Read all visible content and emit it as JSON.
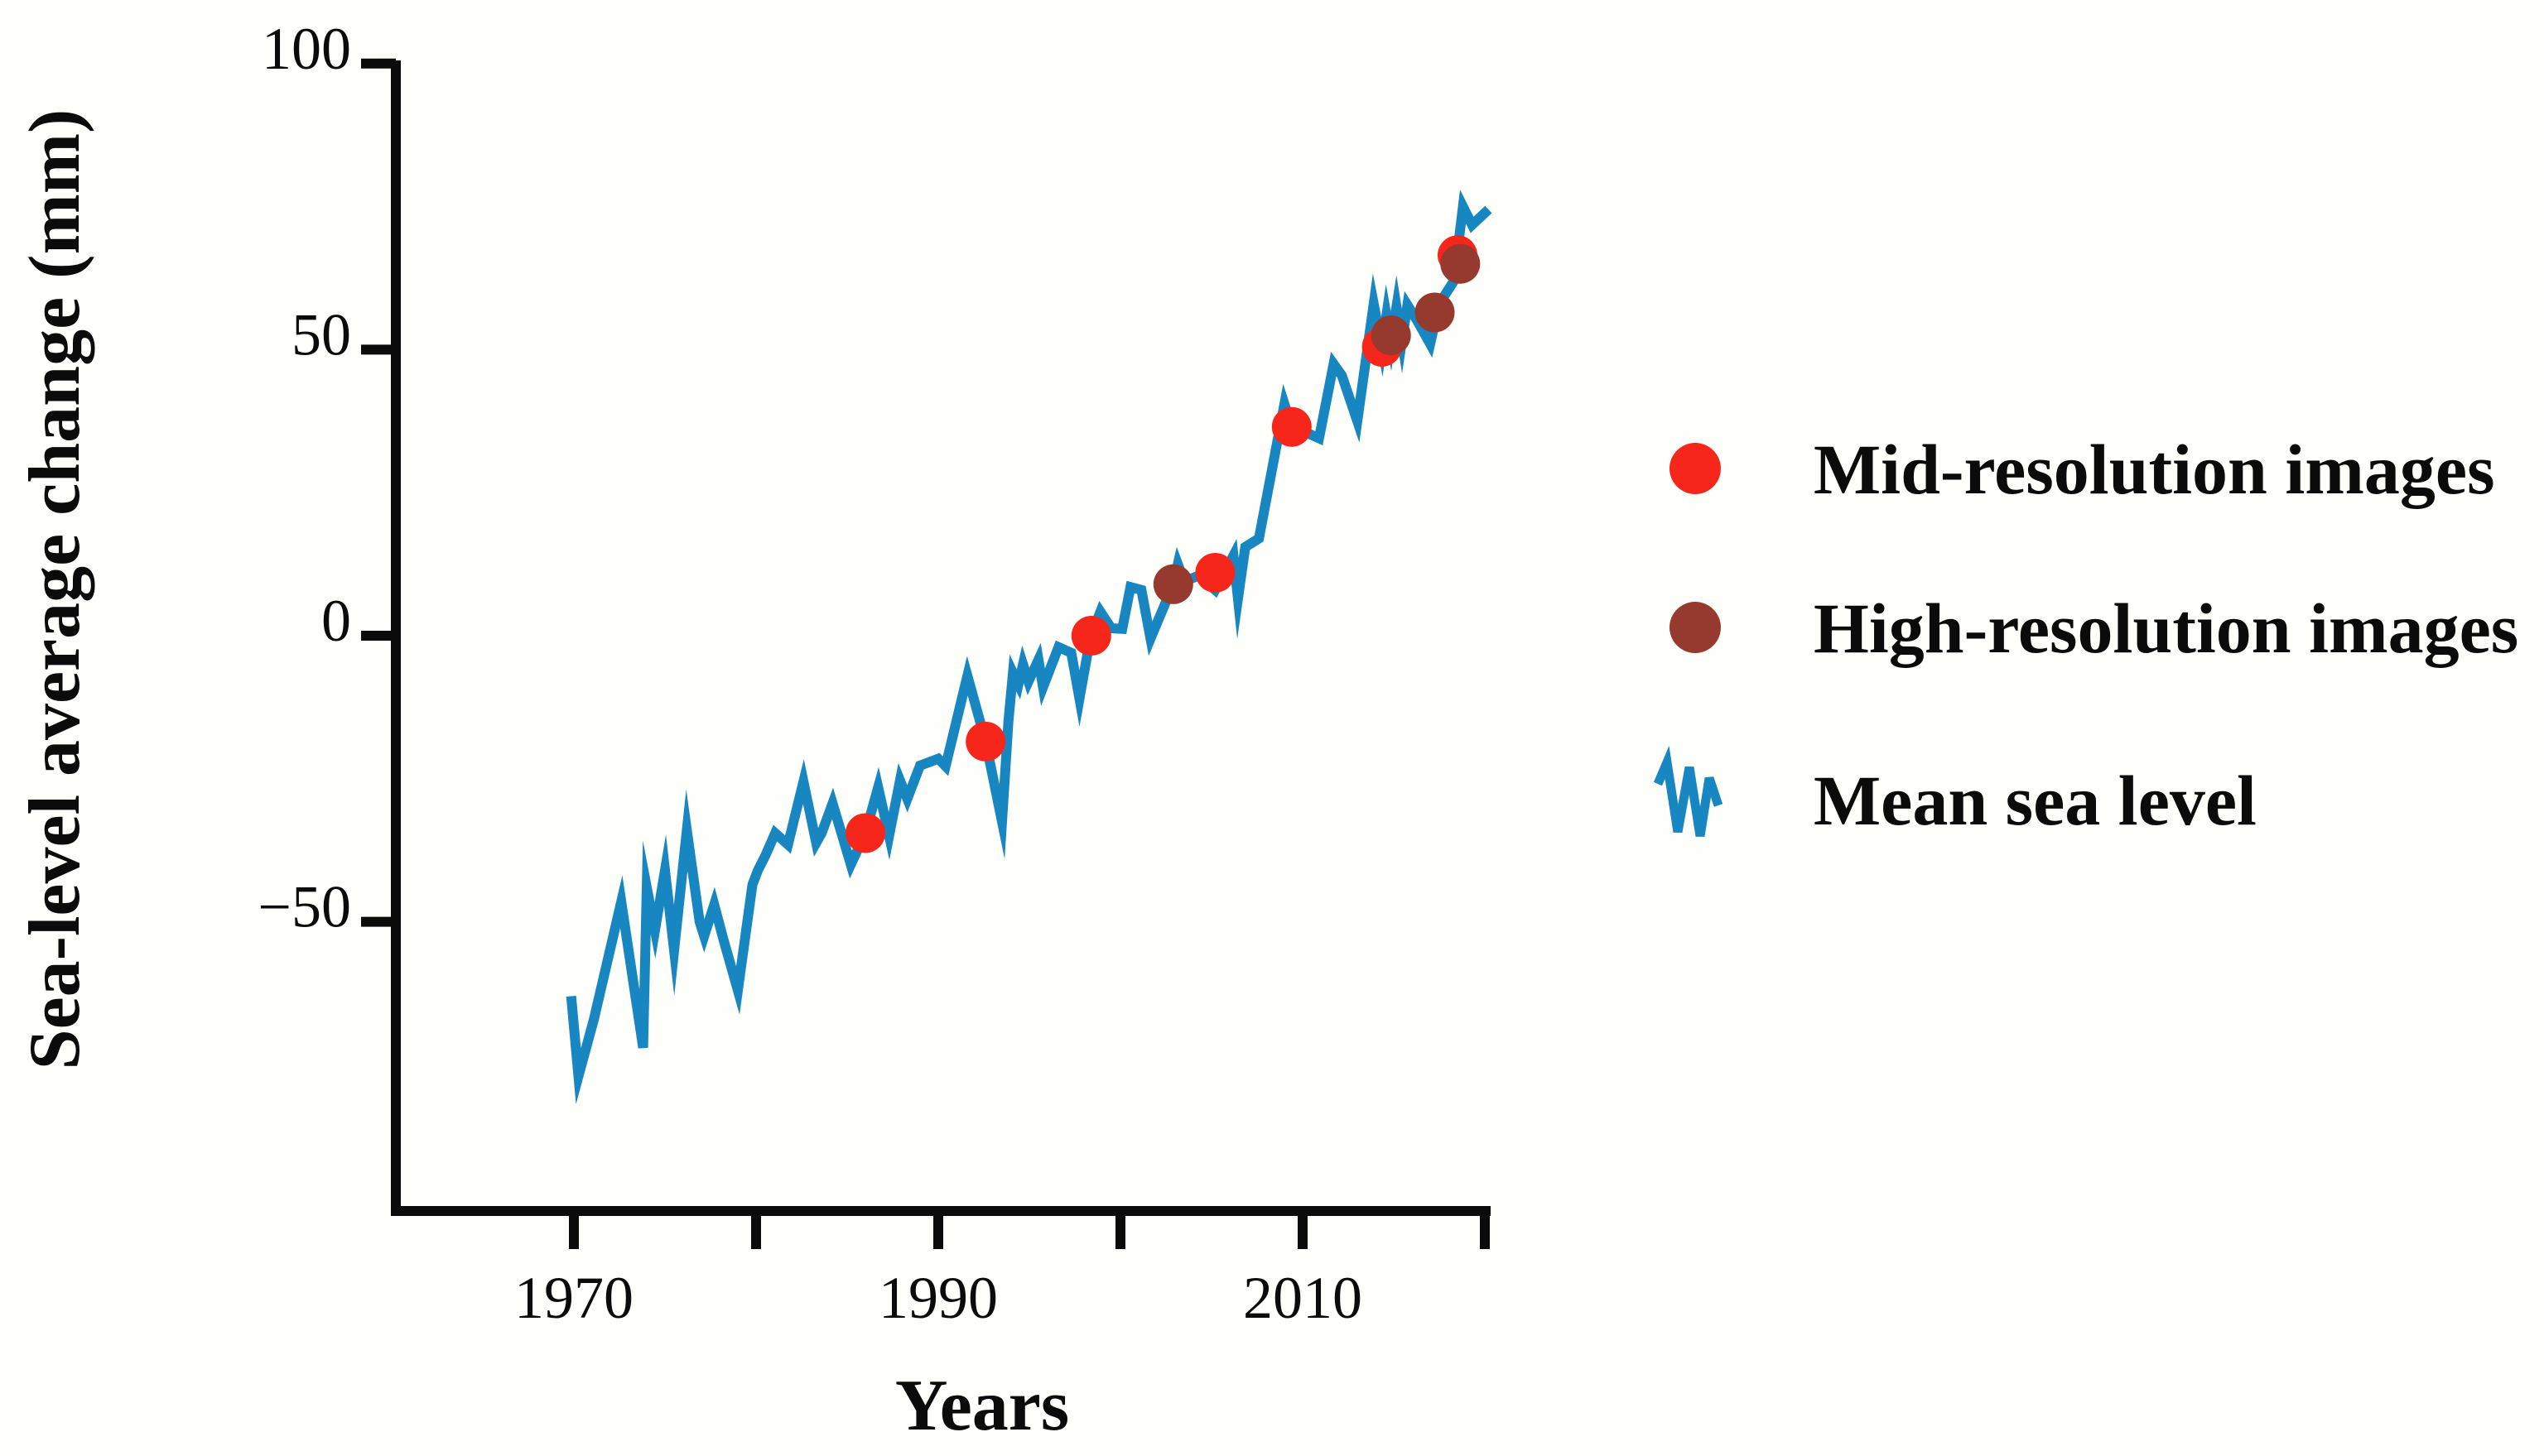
{
  "page": {
    "background": "#FEFEFB"
  },
  "chart_data": {
    "type": "line",
    "title": "",
    "xlabel": "Years",
    "ylabel": "Sea-level average change (mm)",
    "axis_color": "#0b0b0b",
    "grid": false,
    "legend_position": "right-outside",
    "xaxis": {
      "range": [
        1960.2,
        2020.3
      ],
      "ticks": [
        1970,
        1980,
        1990,
        2000,
        2010,
        2020
      ],
      "labeled": [
        {
          "value": 1970,
          "label": "1970"
        },
        {
          "value": 1990,
          "label": "1990"
        },
        {
          "value": 2010,
          "label": "2010"
        }
      ]
    },
    "yaxis": {
      "range": [
        -100.5,
        100
      ],
      "ticks": [
        {
          "value": 100,
          "label": "100"
        },
        {
          "value": 50,
          "label": "50"
        },
        {
          "value": 0,
          "label": "0"
        },
        {
          "value": -50,
          "label": "−50"
        }
      ]
    },
    "series": [
      {
        "name": "Mean sea level",
        "type": "line",
        "color": "#1887C1",
        "points": [
          [
            1969.85,
            -63
          ],
          [
            1970.25,
            -77
          ],
          [
            1971.1,
            -67
          ],
          [
            1972.6,
            -46.5
          ],
          [
            1973.8,
            -72
          ],
          [
            1974.0,
            -44
          ],
          [
            1974.45,
            -51.5
          ],
          [
            1975.0,
            -41
          ],
          [
            1975.5,
            -55
          ],
          [
            1976.2,
            -34
          ],
          [
            1976.9,
            -50
          ],
          [
            1977.15,
            -52.5
          ],
          [
            1977.7,
            -47
          ],
          [
            1978.2,
            -53
          ],
          [
            1979.0,
            -62
          ],
          [
            1979.8,
            -43.5
          ],
          [
            1980.1,
            -41
          ],
          [
            1980.5,
            -38.5
          ],
          [
            1981.05,
            -34.5
          ],
          [
            1981.75,
            -36.5
          ],
          [
            1982.6,
            -25.5
          ],
          [
            1983.3,
            -36.2
          ],
          [
            1983.6,
            -34.5
          ],
          [
            1984.2,
            -29.3
          ],
          [
            1985.2,
            -40
          ],
          [
            1986.0,
            -34.5
          ],
          [
            1986.7,
            -26.5
          ],
          [
            1987.3,
            -35
          ],
          [
            1987.9,
            -25.3
          ],
          [
            1988.3,
            -28.5
          ],
          [
            1989.0,
            -22.7
          ],
          [
            1990.0,
            -21.5
          ],
          [
            1990.4,
            -22.8
          ],
          [
            1991.6,
            -7
          ],
          [
            1992.6,
            -18.5
          ],
          [
            1993.5,
            -32.5
          ],
          [
            1993.85,
            -15
          ],
          [
            1994.1,
            -6.5
          ],
          [
            1994.4,
            -8.5
          ],
          [
            1994.65,
            -5
          ],
          [
            1994.95,
            -8
          ],
          [
            1995.5,
            -4.2
          ],
          [
            1995.75,
            -9
          ],
          [
            1996.6,
            -2
          ],
          [
            1997.3,
            -3
          ],
          [
            1997.75,
            -11
          ],
          [
            1998.35,
            -0.3
          ],
          [
            1998.9,
            4.2
          ],
          [
            1999.5,
            1.3
          ],
          [
            2000.1,
            1.2
          ],
          [
            2000.55,
            8.5
          ],
          [
            2001.15,
            8
          ],
          [
            2001.65,
            -0.5
          ],
          [
            2002.9,
            9
          ],
          [
            2003.15,
            12.5
          ],
          [
            2003.5,
            9.5
          ],
          [
            2004.3,
            10.5
          ],
          [
            2005.2,
            8
          ],
          [
            2006.2,
            14
          ],
          [
            2006.45,
            6.5
          ],
          [
            2006.85,
            15.5
          ],
          [
            2007.6,
            17
          ],
          [
            2009.0,
            40.5
          ],
          [
            2009.4,
            36.5
          ],
          [
            2010.2,
            35.5
          ],
          [
            2010.9,
            34.5
          ],
          [
            2011.7,
            47.5
          ],
          [
            2012.15,
            45.5
          ],
          [
            2013.0,
            37.5
          ],
          [
            2013.9,
            58
          ],
          [
            2014.35,
            50.5
          ],
          [
            2014.6,
            56
          ],
          [
            2014.85,
            51.5
          ],
          [
            2015.15,
            57.5
          ],
          [
            2015.45,
            51.5
          ],
          [
            2015.75,
            57.8
          ],
          [
            2016.3,
            55
          ],
          [
            2017.0,
            51
          ],
          [
            2017.5,
            58
          ],
          [
            2018.3,
            62
          ],
          [
            2018.8,
            75
          ],
          [
            2019.3,
            71.8
          ],
          [
            2020.2,
            74.5
          ]
        ]
      },
      {
        "name": "Mid-resolution images",
        "type": "scatter",
        "color": "#F7261B",
        "points": [
          [
            1986.0,
            -34.5
          ],
          [
            1992.6,
            -18.5
          ],
          [
            1998.4,
            0
          ],
          [
            2005.2,
            11
          ],
          [
            2009.4,
            36.5
          ],
          [
            2014.35,
            50.5
          ],
          [
            2018.5,
            66.5
          ]
        ]
      },
      {
        "name": "High-resolution images",
        "type": "scatter",
        "color": "#963A2F",
        "points": [
          [
            2002.9,
            9
          ],
          [
            2014.85,
            52.5
          ],
          [
            2017.25,
            56.5
          ],
          [
            2018.65,
            65
          ]
        ]
      }
    ],
    "legend": [
      {
        "label": "Mid-resolution images",
        "marker": "dot",
        "color": "#F7261B"
      },
      {
        "label": "High-resolution images",
        "marker": "dot",
        "color": "#963A2F"
      },
      {
        "label": "Mean sea level",
        "marker": "zigzag-line",
        "color": "#1887C1"
      }
    ]
  }
}
